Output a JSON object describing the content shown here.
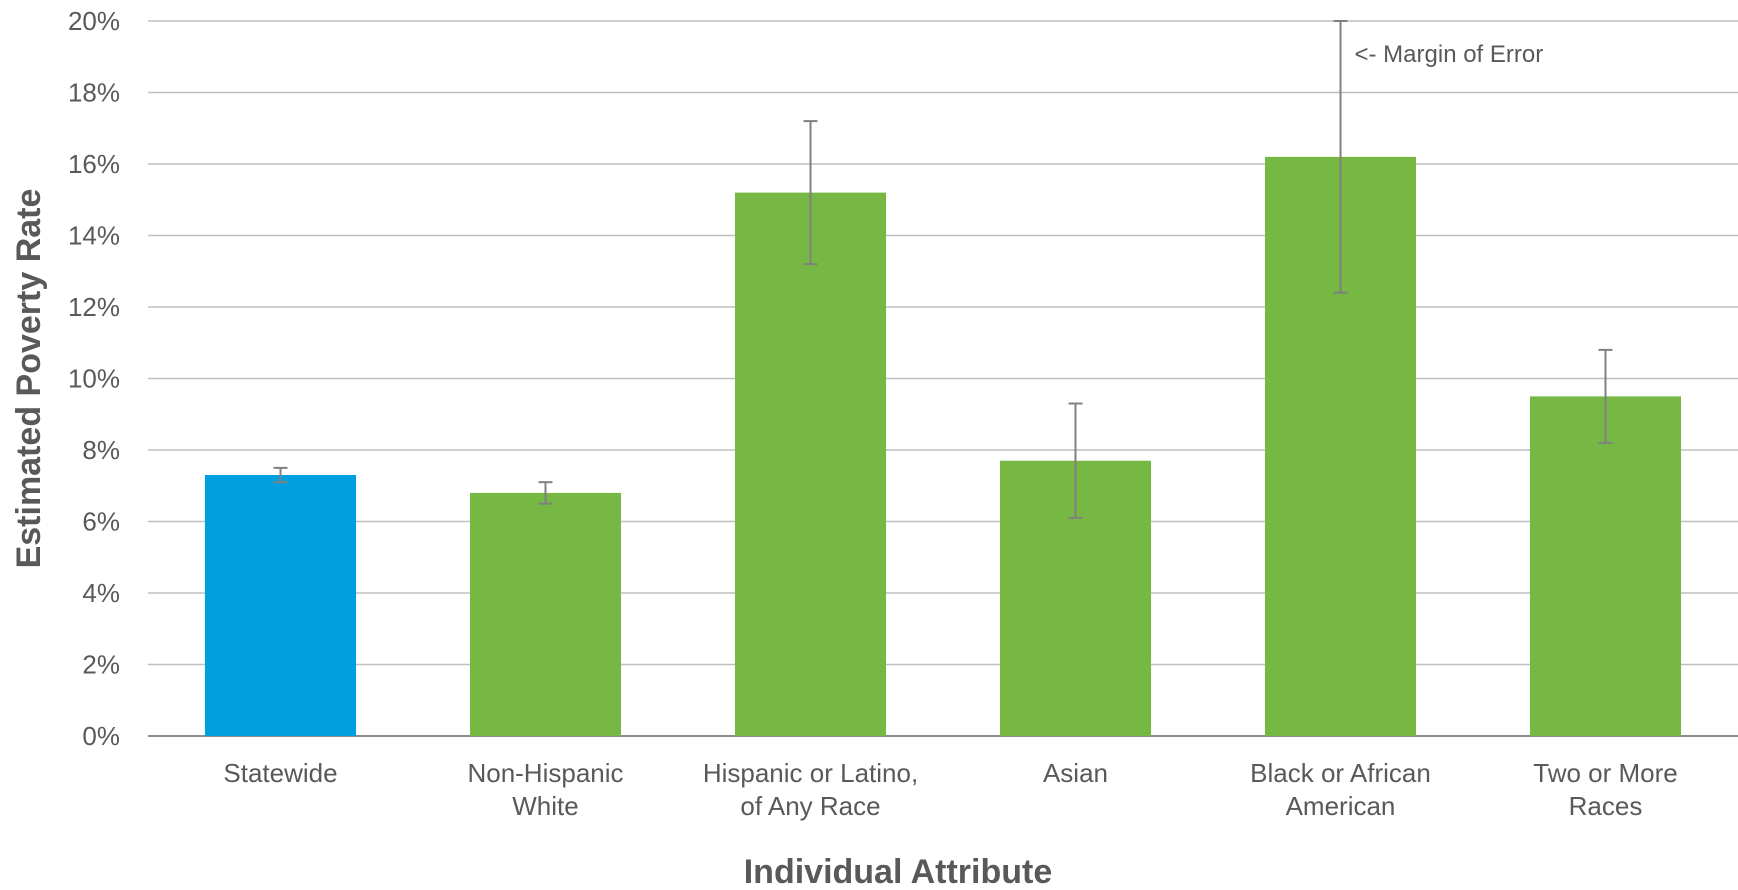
{
  "chart_data": {
    "type": "bar",
    "title": "",
    "xlabel": "Individual Attribute",
    "ylabel": "Estimated Poverty Rate",
    "ylim": [
      0,
      20
    ],
    "y_tick_step": 2,
    "y_tick_format": "percent",
    "grid": true,
    "categories": [
      [
        "Statewide"
      ],
      [
        "Non-Hispanic",
        "White"
      ],
      [
        "Hispanic or Latino,",
        "of Any Race"
      ],
      [
        "Asian"
      ],
      [
        "Black or African",
        "American"
      ],
      [
        "Two or More",
        "Races"
      ]
    ],
    "values": [
      7.3,
      6.8,
      15.2,
      7.7,
      16.2,
      9.5
    ],
    "error_low": [
      7.1,
      6.5,
      13.2,
      6.1,
      12.4,
      8.2
    ],
    "error_high": [
      7.5,
      7.1,
      17.2,
      9.3,
      20.0,
      10.8
    ],
    "bar_colors": [
      "#009fdf",
      "#76b843",
      "#76b843",
      "#76b843",
      "#76b843",
      "#76b843"
    ],
    "annotations": [
      {
        "text": "<- Margin of Error",
        "category_index": 4,
        "y": 19.1
      }
    ]
  },
  "colors": {
    "statewide": "#009fdf",
    "group": "#76b843",
    "grid": "#bfbfbf",
    "text": "#595959",
    "error_bar": "#808080"
  }
}
